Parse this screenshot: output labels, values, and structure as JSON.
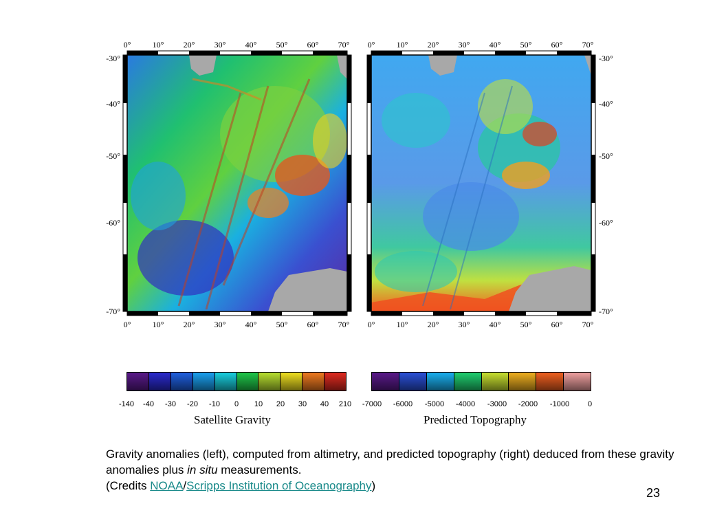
{
  "left_map": {
    "top_lon_labels": [
      "0°",
      "10°",
      "20°",
      "30°",
      "40°",
      "50°",
      "60°",
      "70°"
    ],
    "bottom_lon_labels": [
      "0°",
      "10°",
      "20°",
      "30°",
      "40°",
      "50°",
      "60°",
      "70°"
    ],
    "lat_labels": [
      "-30°",
      "-40°",
      "-50°",
      "-60°",
      "-70°"
    ]
  },
  "right_map": {
    "top_lon_labels": [
      "0°",
      "10°",
      "20°",
      "30°",
      "40°",
      "50°",
      "60°",
      "70°"
    ],
    "bottom_lon_labels": [
      "0°",
      "10°",
      "20°",
      "30°",
      "40°",
      "50°",
      "60°",
      "70°"
    ],
    "lat_labels": [
      "-30°",
      "-40°",
      "-50°",
      "-60°",
      "-70°"
    ]
  },
  "gravity_colorbar": {
    "title": "Satellite Gravity",
    "ticks": [
      "-140",
      "-40",
      "-30",
      "-20",
      "-10",
      "0",
      "10",
      "20",
      "30",
      "40",
      "210"
    ],
    "colors": [
      "#5a1a8a",
      "#2a2acf",
      "#1f5fe0",
      "#1aa0f0",
      "#19d0e0",
      "#20c84a",
      "#b8e030",
      "#f0e020",
      "#f07a20",
      "#e02a20"
    ]
  },
  "topo_colorbar": {
    "title": "Predicted Topography",
    "ticks": [
      "-7000",
      "-6000",
      "-5000",
      "-4000",
      "-3000",
      "-2000",
      "-1000",
      "0"
    ],
    "colors": [
      "#5a1a8a",
      "#2a50d8",
      "#1ab0f0",
      "#20d070",
      "#c8e030",
      "#f0b020",
      "#f06020",
      "#f0a0a0"
    ]
  },
  "caption": {
    "line1": "Gravity anomalies (left), computed from altimetry, and predicted topography (right) deduced from these gravity anomalies plus ",
    "italic": "in situ",
    "line1_end": " measurements.",
    "credits_prefix": "(Credits ",
    "link1": "NOAA",
    "slash": "/",
    "link2": "Scripps Institution of Oceanography",
    "credits_suffix": ")"
  },
  "page_number": "23"
}
